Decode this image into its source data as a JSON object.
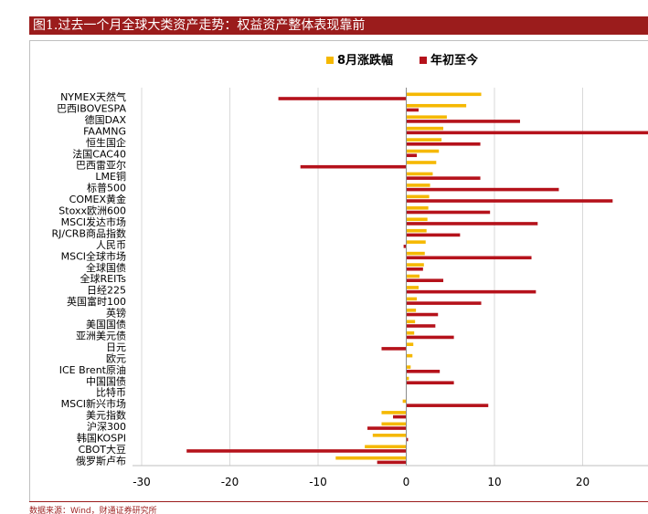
{
  "figure": {
    "title": "图1.过去一个月全球大类资产走势：权益资产整体表现靠前",
    "source": "数据来源：Wind，财通证券研究所"
  },
  "colors": {
    "series1": "#f5b800",
    "series2": "#b5121b",
    "grid": "#d9d9d9",
    "text": "#000000"
  },
  "chart_data": {
    "type": "bar",
    "orientation": "horizontal",
    "xlim": [
      -30,
      25
    ],
    "xticks": [
      -30,
      -20,
      -10,
      0,
      10,
      20
    ],
    "legend_position": "top",
    "grid": true,
    "categories": [
      "NYMEX天然气",
      "巴西IBOVESPA",
      "德国DAX",
      "FAAMNG",
      "恒生国企",
      "法国CAC40",
      "巴西雷亚尔",
      "LME铜",
      "标普500",
      "COMEX黄金",
      "Stoxx欧洲600",
      "MSCI发达市场",
      "RJ/CRB商品指数",
      "人民币",
      "MSCI全球市场",
      "全球国债",
      "全球REITs",
      "日经225",
      "英国富时100",
      "英镑",
      "美国国债",
      "亚洲美元债",
      "日元",
      "欧元",
      "ICE Brent原油",
      "中国国债",
      "比特币",
      "MSCI新兴市场",
      "美元指数",
      "沪深300",
      "韩国KOSPI",
      "CBOT大豆",
      "俄罗斯卢布"
    ],
    "series": [
      {
        "name": "8月涨跌幅",
        "values": [
          8.5,
          6.8,
          4.6,
          4.2,
          4.0,
          3.7,
          3.4,
          3.0,
          2.7,
          2.6,
          2.5,
          2.4,
          2.3,
          2.2,
          2.1,
          2.0,
          1.5,
          1.4,
          1.2,
          1.1,
          1.0,
          0.9,
          0.8,
          0.7,
          0.5,
          0.3,
          0.0,
          -0.4,
          -2.8,
          -2.8,
          -3.8,
          -4.7,
          -8.0
        ]
      },
      {
        "name": "年初至今",
        "values": [
          -14.5,
          1.4,
          12.9,
          27.8,
          8.4,
          1.2,
          -12.0,
          8.4,
          17.3,
          23.4,
          9.5,
          14.9,
          6.1,
          -0.3,
          14.2,
          1.9,
          4.2,
          14.7,
          8.5,
          3.6,
          3.3,
          5.4,
          -2.8,
          0.0,
          3.8,
          5.4,
          0.0,
          9.3,
          -1.5,
          -4.4,
          0.2,
          -24.9,
          -3.3
        ]
      }
    ]
  }
}
